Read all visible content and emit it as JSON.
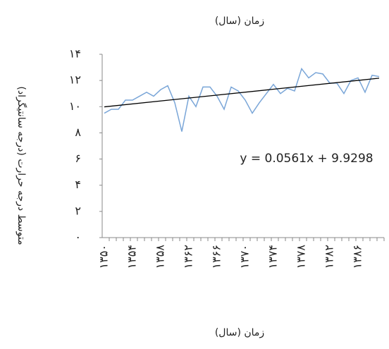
{
  "chart_data": {
    "type": "line",
    "title": "زمان (سال)",
    "x_label": "زمان (سال)",
    "y_label": "متوسط درجه حرارت (درجه سانتیگراد)",
    "annotation": "y = 0.0561x + 9.9298",
    "trendline": {
      "slope": 0.0561,
      "intercept": 9.9298,
      "color": "#000000"
    },
    "categories": [
      "۱۳۵۰",
      null,
      null,
      null,
      "۱۳۵۴",
      null,
      null,
      null,
      "۱۳۵۸",
      null,
      null,
      null,
      "۱۳۶۲",
      null,
      null,
      null,
      "۱۳۶۶",
      null,
      null,
      null,
      "۱۳۷۰",
      null,
      null,
      null,
      "۱۳۷۴",
      null,
      null,
      null,
      "۱۳۷۸",
      null,
      null,
      null,
      "۱۳۸۲",
      null,
      null,
      null,
      "۱۳۸۶",
      null,
      null,
      null
    ],
    "series": [
      {
        "name": "temperature",
        "color": "#7aa6d8",
        "values": [
          9.5,
          9.8,
          9.8,
          10.5,
          10.5,
          10.8,
          11.1,
          10.8,
          11.3,
          11.6,
          10.3,
          8.1,
          10.8,
          10.0,
          11.5,
          11.5,
          10.8,
          9.8,
          11.5,
          11.2,
          10.5,
          9.5,
          10.3,
          11.0,
          11.7,
          11.0,
          11.4,
          11.2,
          12.9,
          12.2,
          12.6,
          12.5,
          11.8,
          11.8,
          11.0,
          12.0,
          12.2,
          11.1,
          12.4,
          12.3
        ]
      }
    ],
    "ylim": [
      0,
      14
    ],
    "yticks": [
      {
        "value": 0,
        "label": "۰"
      },
      {
        "value": 2,
        "label": "۲"
      },
      {
        "value": 4,
        "label": "۴"
      },
      {
        "value": 6,
        "label": "۶"
      },
      {
        "value": 8,
        "label": "۸"
      },
      {
        "value": 10,
        "label": "۱۰"
      },
      {
        "value": 12,
        "label": "۱۲"
      },
      {
        "value": 14,
        "label": "۱۴"
      }
    ]
  }
}
